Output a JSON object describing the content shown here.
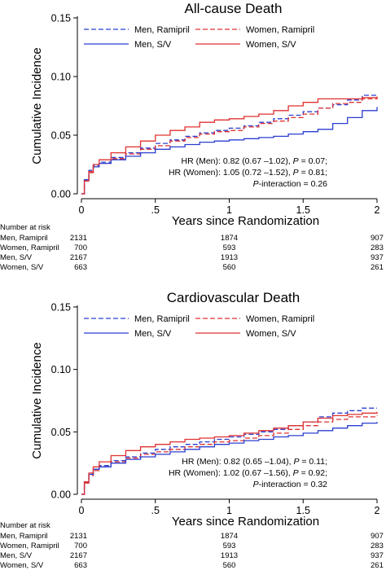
{
  "chart_data": [
    {
      "type": "line",
      "title": "All-cause Death",
      "xlabel": "Years since Randomization",
      "ylabel": "Cumulative Incidence",
      "xlim": [
        0,
        2
      ],
      "ylim": [
        0,
        0.15
      ],
      "x_ticks": [
        {
          "value": 0,
          "label": "0"
        },
        {
          "value": 0.5,
          "label": ".5"
        },
        {
          "value": 1,
          "label": "1"
        },
        {
          "value": 1.5,
          "label": "1.5"
        },
        {
          "value": 2,
          "label": "2"
        }
      ],
      "y_ticks": [
        {
          "value": 0,
          "label": "0.00"
        },
        {
          "value": 0.05,
          "label": "0.05"
        },
        {
          "value": 0.1,
          "label": "0.10"
        },
        {
          "value": 0.15,
          "label": "0.15"
        }
      ],
      "series": [
        {
          "name": "Men, Ramipril",
          "color": "#2b3fd0",
          "dash": "dashed",
          "x": [
            0,
            0.02,
            0.05,
            0.08,
            0.12,
            0.2,
            0.3,
            0.4,
            0.5,
            0.6,
            0.7,
            0.8,
            0.9,
            1.0,
            1.1,
            1.2,
            1.3,
            1.4,
            1.5,
            1.6,
            1.7,
            1.8,
            1.9,
            2.0
          ],
          "values": [
            0,
            0.012,
            0.02,
            0.024,
            0.027,
            0.031,
            0.035,
            0.039,
            0.043,
            0.046,
            0.049,
            0.052,
            0.054,
            0.056,
            0.058,
            0.061,
            0.064,
            0.067,
            0.07,
            0.073,
            0.076,
            0.08,
            0.084,
            0.085
          ]
        },
        {
          "name": "Women, Ramipril",
          "color": "#e03030",
          "dash": "dashed",
          "x": [
            0,
            0.02,
            0.05,
            0.08,
            0.12,
            0.2,
            0.3,
            0.4,
            0.5,
            0.6,
            0.7,
            0.8,
            0.9,
            1.0,
            1.1,
            1.2,
            1.3,
            1.4,
            1.5,
            1.6,
            1.7,
            1.8,
            1.9,
            2.0
          ],
          "values": [
            0,
            0.011,
            0.018,
            0.023,
            0.026,
            0.03,
            0.034,
            0.038,
            0.041,
            0.045,
            0.048,
            0.051,
            0.053,
            0.054,
            0.057,
            0.06,
            0.062,
            0.065,
            0.068,
            0.073,
            0.077,
            0.078,
            0.081,
            0.082
          ]
        },
        {
          "name": "Men, S/V",
          "color": "#2b3fd0",
          "dash": "solid",
          "x": [
            0,
            0.02,
            0.05,
            0.08,
            0.12,
            0.2,
            0.3,
            0.4,
            0.5,
            0.6,
            0.7,
            0.8,
            0.9,
            1.0,
            1.1,
            1.2,
            1.3,
            1.4,
            1.5,
            1.6,
            1.7,
            1.8,
            1.9,
            2.0
          ],
          "values": [
            0,
            0.012,
            0.019,
            0.023,
            0.026,
            0.029,
            0.032,
            0.035,
            0.038,
            0.04,
            0.042,
            0.044,
            0.045,
            0.046,
            0.047,
            0.048,
            0.049,
            0.051,
            0.053,
            0.055,
            0.06,
            0.065,
            0.071,
            0.074
          ]
        },
        {
          "name": "Women, S/V",
          "color": "#e03030",
          "dash": "solid",
          "x": [
            0,
            0.02,
            0.05,
            0.08,
            0.12,
            0.2,
            0.3,
            0.4,
            0.5,
            0.6,
            0.7,
            0.8,
            0.9,
            1.0,
            1.1,
            1.2,
            1.3,
            1.4,
            1.5,
            1.6,
            1.7,
            1.8,
            1.9,
            2.0
          ],
          "values": [
            0,
            0.011,
            0.019,
            0.025,
            0.029,
            0.035,
            0.04,
            0.045,
            0.05,
            0.054,
            0.057,
            0.061,
            0.063,
            0.064,
            0.066,
            0.068,
            0.071,
            0.075,
            0.078,
            0.081,
            0.081,
            0.081,
            0.082,
            0.083
          ]
        }
      ],
      "legend_position": "top",
      "annotation_lines": [
        "HR (Men): 0.82 (0.67 –1.02), P = 0.07;",
        "HR (Women): 1.05 (0.72 –1.52), P = 0.81;",
        "P-interaction = 0.26"
      ],
      "risk_table": {
        "title": "Number at risk",
        "time_points": [
          0,
          1,
          2
        ],
        "rows": [
          {
            "label": "Men, Ramipril",
            "values": [
              "2131",
              "1874",
              "907"
            ]
          },
          {
            "label": "Women, Ramipril",
            "values": [
              "700",
              "593",
              "283"
            ]
          },
          {
            "label": "Men, S/V",
            "values": [
              "2167",
              "1913",
              "937"
            ]
          },
          {
            "label": "Women, S/V",
            "values": [
              "663",
              "560",
              "261"
            ]
          }
        ]
      }
    },
    {
      "type": "line",
      "title": "Cardiovascular Death",
      "xlabel": "Years since Randomization",
      "ylabel": "Cumulative Incidence",
      "xlim": [
        0,
        2
      ],
      "ylim": [
        0,
        0.15
      ],
      "x_ticks": [
        {
          "value": 0,
          "label": "0"
        },
        {
          "value": 0.5,
          "label": ".5"
        },
        {
          "value": 1,
          "label": "1"
        },
        {
          "value": 1.5,
          "label": "1.5"
        },
        {
          "value": 2,
          "label": "2"
        }
      ],
      "y_ticks": [
        {
          "value": 0,
          "label": "0.00"
        },
        {
          "value": 0.05,
          "label": "0.05"
        },
        {
          "value": 0.1,
          "label": "0.10"
        },
        {
          "value": 0.15,
          "label": "0.15"
        }
      ],
      "series": [
        {
          "name": "Men, Ramipril",
          "color": "#2b3fd0",
          "dash": "dashed",
          "x": [
            0,
            0.02,
            0.05,
            0.08,
            0.12,
            0.2,
            0.3,
            0.4,
            0.5,
            0.6,
            0.7,
            0.8,
            0.9,
            1.0,
            1.1,
            1.2,
            1.3,
            1.4,
            1.5,
            1.6,
            1.7,
            1.8,
            1.9,
            2.0
          ],
          "values": [
            0,
            0.01,
            0.016,
            0.02,
            0.023,
            0.027,
            0.03,
            0.033,
            0.036,
            0.038,
            0.04,
            0.042,
            0.044,
            0.046,
            0.048,
            0.05,
            0.052,
            0.055,
            0.058,
            0.062,
            0.065,
            0.067,
            0.069,
            0.069
          ]
        },
        {
          "name": "Women, Ramipril",
          "color": "#e03030",
          "dash": "dashed",
          "x": [
            0,
            0.02,
            0.05,
            0.08,
            0.12,
            0.2,
            0.3,
            0.4,
            0.5,
            0.6,
            0.7,
            0.8,
            0.9,
            1.0,
            1.1,
            1.2,
            1.3,
            1.4,
            1.5,
            1.6,
            1.7,
            1.8,
            1.9,
            2.0
          ],
          "values": [
            0,
            0.009,
            0.015,
            0.019,
            0.022,
            0.026,
            0.029,
            0.032,
            0.034,
            0.036,
            0.038,
            0.04,
            0.042,
            0.043,
            0.045,
            0.047,
            0.049,
            0.052,
            0.055,
            0.058,
            0.06,
            0.062,
            0.062,
            0.063
          ]
        },
        {
          "name": "Men, S/V",
          "color": "#2b3fd0",
          "dash": "solid",
          "x": [
            0,
            0.02,
            0.05,
            0.08,
            0.12,
            0.2,
            0.3,
            0.4,
            0.5,
            0.6,
            0.7,
            0.8,
            0.9,
            1.0,
            1.1,
            1.2,
            1.3,
            1.4,
            1.5,
            1.6,
            1.7,
            1.8,
            1.9,
            2.0
          ],
          "values": [
            0,
            0.01,
            0.016,
            0.02,
            0.022,
            0.025,
            0.028,
            0.03,
            0.032,
            0.034,
            0.036,
            0.038,
            0.04,
            0.041,
            0.043,
            0.044,
            0.046,
            0.047,
            0.049,
            0.051,
            0.053,
            0.055,
            0.057,
            0.058
          ]
        },
        {
          "name": "Women, S/V",
          "color": "#e03030",
          "dash": "solid",
          "x": [
            0,
            0.02,
            0.05,
            0.08,
            0.12,
            0.2,
            0.3,
            0.4,
            0.5,
            0.6,
            0.7,
            0.8,
            0.9,
            1.0,
            1.1,
            1.2,
            1.3,
            1.4,
            1.5,
            1.6,
            1.7,
            1.8,
            1.9,
            2.0
          ],
          "values": [
            0,
            0.01,
            0.017,
            0.022,
            0.026,
            0.031,
            0.035,
            0.038,
            0.04,
            0.042,
            0.044,
            0.045,
            0.046,
            0.047,
            0.049,
            0.051,
            0.053,
            0.055,
            0.058,
            0.061,
            0.063,
            0.064,
            0.065,
            0.066
          ]
        }
      ],
      "legend_position": "top",
      "annotation_lines": [
        "HR (Men): 0.82 (0.65 –1.04), P = 0.11;",
        "HR (Women): 1.02 (0.67 –1.56), P = 0.92;",
        "P-interaction = 0.32"
      ],
      "risk_table": {
        "title": "Number at risk",
        "time_points": [
          0,
          1,
          2
        ],
        "rows": [
          {
            "label": "Men, Ramipril",
            "values": [
              "2131",
              "1874",
              "907"
            ]
          },
          {
            "label": "Women, Ramipril",
            "values": [
              "700",
              "593",
              "283"
            ]
          },
          {
            "label": "Men, S/V",
            "values": [
              "2167",
              "1913",
              "937"
            ]
          },
          {
            "label": "Women, S/V",
            "values": [
              "663",
              "560",
              "261"
            ]
          }
        ]
      }
    }
  ]
}
